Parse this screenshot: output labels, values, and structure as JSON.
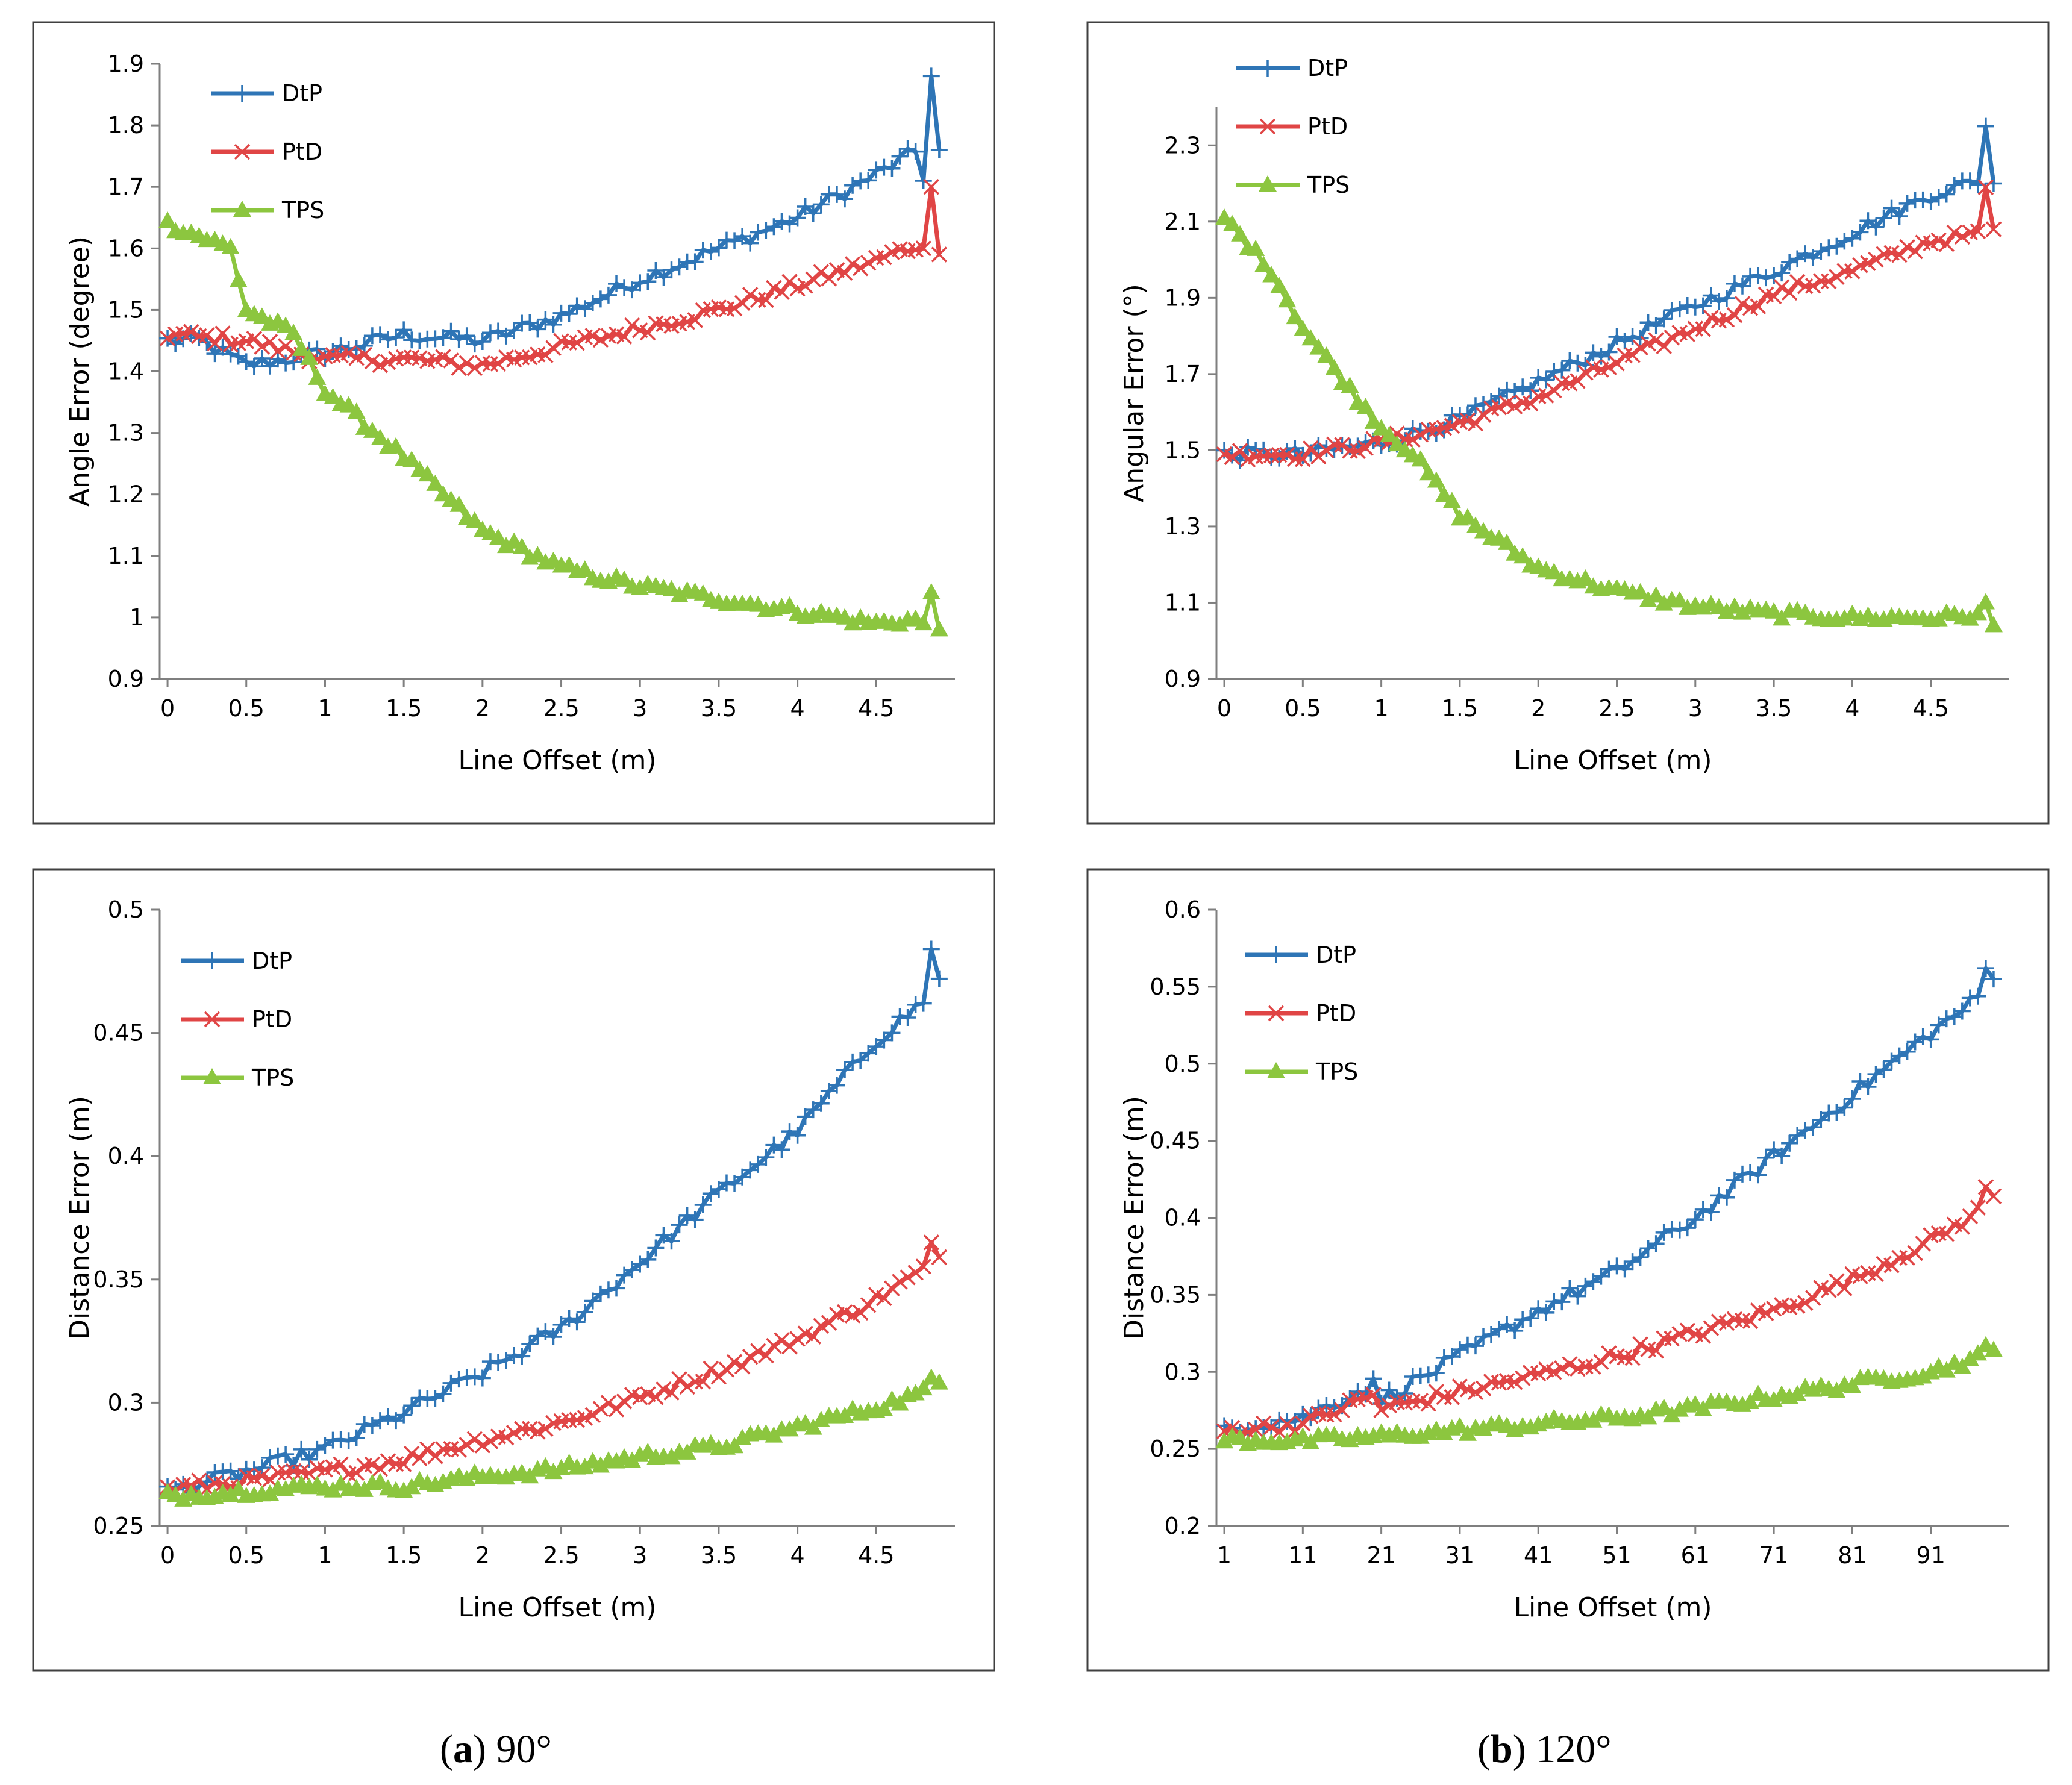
{
  "colors": {
    "dtp": "#2e75b6",
    "ptd": "#e04545",
    "tps": "#8cc63f",
    "axis": "#7f7f7f",
    "frame": "#404040"
  },
  "captions": {
    "a_letter": "a",
    "a_rest": " 90°",
    "b_letter": "b",
    "b_rest": " 120°"
  },
  "chart_data": [
    {
      "id": "a-angle",
      "type": "line",
      "title": "",
      "xlabel": "Line Offset (m)",
      "ylabel": "Angle Error (degree)",
      "xlim": [
        -0.05,
        5.0
      ],
      "ylim": [
        0.9,
        1.9
      ],
      "xticks": [
        0,
        0.5,
        1,
        1.5,
        2,
        2.5,
        3,
        3.5,
        4,
        4.5
      ],
      "xtick_labels": [
        "0",
        "0.5",
        "1",
        "1.5",
        "2",
        "2.5",
        "3",
        "3.5",
        "4",
        "4.5"
      ],
      "yticks": [
        0.9,
        1.0,
        1.1,
        1.2,
        1.3,
        1.4,
        1.5,
        1.6,
        1.7,
        1.8,
        1.9
      ],
      "ytick_labels": [
        "0.9",
        "1",
        "1.1",
        "1.2",
        "1.3",
        "1.4",
        "1.5",
        "1.6",
        "1.7",
        "1.8",
        "1.9"
      ],
      "legend": [
        "DtP",
        "PtD",
        "TPS"
      ],
      "legend_position": "top-left",
      "x_start": 0,
      "x_step": 0.05,
      "anchors": {
        "DtP": [
          [
            0,
            1.45
          ],
          [
            0.2,
            1.45
          ],
          [
            0.5,
            1.41
          ],
          [
            1.0,
            1.43
          ],
          [
            1.5,
            1.46
          ],
          [
            2.0,
            1.45
          ],
          [
            2.5,
            1.49
          ],
          [
            3.0,
            1.55
          ],
          [
            3.5,
            1.6
          ],
          [
            4.0,
            1.65
          ],
          [
            4.5,
            1.72
          ],
          [
            4.9,
            1.78
          ]
        ],
        "PtD": [
          [
            0,
            1.46
          ],
          [
            0.5,
            1.45
          ],
          [
            1.0,
            1.42
          ],
          [
            1.5,
            1.42
          ],
          [
            2.0,
            1.41
          ],
          [
            2.5,
            1.44
          ],
          [
            3.0,
            1.47
          ],
          [
            3.5,
            1.5
          ],
          [
            4.0,
            1.54
          ],
          [
            4.5,
            1.58
          ],
          [
            4.9,
            1.62
          ]
        ],
        "TPS": [
          [
            0,
            1.64
          ],
          [
            0.4,
            1.6
          ],
          [
            0.5,
            1.5
          ],
          [
            0.8,
            1.46
          ],
          [
            1.0,
            1.37
          ],
          [
            1.5,
            1.26
          ],
          [
            2.0,
            1.14
          ],
          [
            2.5,
            1.08
          ],
          [
            3.0,
            1.05
          ],
          [
            3.5,
            1.03
          ],
          [
            4.0,
            1.01
          ],
          [
            4.5,
            0.99
          ],
          [
            4.9,
            1.0
          ]
        ]
      },
      "overrides": {
        "DtP": [
          [
            4.8,
            1.71
          ],
          [
            4.85,
            1.88
          ],
          [
            4.9,
            1.76
          ]
        ],
        "PtD": [
          [
            4.8,
            1.6
          ],
          [
            4.85,
            1.7
          ],
          [
            4.9,
            1.59
          ]
        ],
        "TPS": [
          [
            4.8,
            0.99
          ],
          [
            4.85,
            1.04
          ],
          [
            4.9,
            0.98
          ]
        ]
      }
    },
    {
      "id": "b-angle",
      "type": "line",
      "title": "",
      "xlabel": "Line Offset (m)",
      "ylabel": "Angular Error (°)",
      "xlim": [
        -0.05,
        5.0
      ],
      "ylim": [
        0.9,
        2.4
      ],
      "xticks": [
        0,
        0.5,
        1,
        1.5,
        2,
        2.5,
        3,
        3.5,
        4,
        4.5
      ],
      "xtick_labels": [
        "0",
        "0.5",
        "1",
        "1.5",
        "2",
        "2.5",
        "3",
        "3.5",
        "4",
        "4.5"
      ],
      "yticks": [
        0.9,
        1.1,
        1.3,
        1.5,
        1.7,
        1.9,
        2.1,
        2.3
      ],
      "ytick_labels": [
        "0.9",
        "1.1",
        "1.3",
        "1.5",
        "1.7",
        "1.9",
        "2.1",
        "2.3"
      ],
      "legend": [
        "DtP",
        "PtD",
        "TPS"
      ],
      "legend_position": "top-left",
      "x_start": 0,
      "x_step": 0.05,
      "anchors": {
        "DtP": [
          [
            0,
            1.49
          ],
          [
            0.5,
            1.49
          ],
          [
            1.0,
            1.52
          ],
          [
            1.5,
            1.58
          ],
          [
            2.0,
            1.68
          ],
          [
            2.5,
            1.78
          ],
          [
            3.0,
            1.88
          ],
          [
            3.5,
            1.97
          ],
          [
            4.0,
            2.07
          ],
          [
            4.5,
            2.17
          ],
          [
            4.9,
            2.22
          ]
        ],
        "PtD": [
          [
            0,
            1.49
          ],
          [
            0.5,
            1.49
          ],
          [
            1.0,
            1.52
          ],
          [
            1.5,
            1.57
          ],
          [
            2.0,
            1.64
          ],
          [
            2.5,
            1.73
          ],
          [
            3.0,
            1.82
          ],
          [
            3.5,
            1.91
          ],
          [
            4.0,
            1.97
          ],
          [
            4.5,
            2.05
          ],
          [
            4.9,
            2.07
          ]
        ],
        "TPS": [
          [
            0,
            2.11
          ],
          [
            0.3,
            1.97
          ],
          [
            0.5,
            1.82
          ],
          [
            0.8,
            1.66
          ],
          [
            1.0,
            1.56
          ],
          [
            1.2,
            1.49
          ],
          [
            1.5,
            1.33
          ],
          [
            2.0,
            1.19
          ],
          [
            2.5,
            1.13
          ],
          [
            3.0,
            1.09
          ],
          [
            3.5,
            1.07
          ],
          [
            4.0,
            1.06
          ],
          [
            4.5,
            1.06
          ],
          [
            4.9,
            1.07
          ]
        ]
      },
      "overrides": {
        "DtP": [
          [
            4.85,
            2.35
          ],
          [
            4.9,
            2.2
          ]
        ],
        "PtD": [
          [
            4.85,
            2.19
          ],
          [
            4.9,
            2.08
          ]
        ],
        "TPS": [
          [
            4.85,
            1.1
          ],
          [
            4.9,
            1.04
          ]
        ]
      }
    },
    {
      "id": "a-distance",
      "type": "line",
      "title": "",
      "xlabel": "Line Offset (m)",
      "ylabel": "Distance Error (m)",
      "xlim": [
        -0.05,
        5.0
      ],
      "ylim": [
        0.25,
        0.5
      ],
      "xticks": [
        0,
        0.5,
        1,
        1.5,
        2,
        2.5,
        3,
        3.5,
        4,
        4.5
      ],
      "xtick_labels": [
        "0",
        "0.5",
        "1",
        "1.5",
        "2",
        "2.5",
        "3",
        "3.5",
        "4",
        "4.5"
      ],
      "yticks": [
        0.25,
        0.3,
        0.35,
        0.4,
        0.45,
        0.5
      ],
      "ytick_labels": [
        "0.25",
        "0.3",
        "0.35",
        "0.4",
        "0.45",
        "0.5"
      ],
      "legend": [
        "DtP",
        "PtD",
        "TPS"
      ],
      "legend_position": "top-left",
      "x_start": 0,
      "x_step": 0.05,
      "anchors": {
        "DtP": [
          [
            0,
            0.264
          ],
          [
            0.5,
            0.272
          ],
          [
            1.0,
            0.281
          ],
          [
            1.5,
            0.296
          ],
          [
            2.0,
            0.312
          ],
          [
            2.5,
            0.33
          ],
          [
            3.0,
            0.357
          ],
          [
            3.5,
            0.385
          ],
          [
            4.0,
            0.41
          ],
          [
            4.5,
            0.447
          ],
          [
            4.9,
            0.468
          ]
        ],
        "PtD": [
          [
            0,
            0.265
          ],
          [
            0.5,
            0.268
          ],
          [
            1.0,
            0.272
          ],
          [
            1.5,
            0.277
          ],
          [
            2.0,
            0.285
          ],
          [
            2.5,
            0.292
          ],
          [
            3.0,
            0.302
          ],
          [
            3.5,
            0.313
          ],
          [
            4.0,
            0.326
          ],
          [
            4.5,
            0.342
          ],
          [
            4.9,
            0.358
          ]
        ],
        "TPS": [
          [
            0,
            0.262
          ],
          [
            0.5,
            0.264
          ],
          [
            1.0,
            0.266
          ],
          [
            1.5,
            0.266
          ],
          [
            2.0,
            0.27
          ],
          [
            2.5,
            0.273
          ],
          [
            3.0,
            0.278
          ],
          [
            3.5,
            0.282
          ],
          [
            4.0,
            0.29
          ],
          [
            4.5,
            0.298
          ],
          [
            4.9,
            0.306
          ]
        ]
      },
      "overrides": {
        "DtP": [
          [
            4.85,
            0.484
          ],
          [
            4.9,
            0.472
          ]
        ],
        "PtD": [
          [
            4.85,
            0.365
          ],
          [
            4.9,
            0.359
          ]
        ],
        "TPS": [
          [
            4.85,
            0.31
          ],
          [
            4.9,
            0.308
          ]
        ]
      }
    },
    {
      "id": "b-distance",
      "type": "line",
      "title": "",
      "xlabel": "Line Offset (m)",
      "ylabel": "Distance Error (m)",
      "xlim": [
        0,
        101
      ],
      "ylim": [
        0.2,
        0.6
      ],
      "xticks": [
        1,
        11,
        21,
        31,
        41,
        51,
        61,
        71,
        81,
        91
      ],
      "xtick_labels": [
        "1",
        "11",
        "21",
        "31",
        "41",
        "51",
        "61",
        "71",
        "81",
        "91"
      ],
      "yticks": [
        0.2,
        0.25,
        0.3,
        0.35,
        0.4,
        0.45,
        0.5,
        0.55,
        0.6
      ],
      "ytick_labels": [
        "0.2",
        "0.25",
        "0.3",
        "0.35",
        "0.4",
        "0.45",
        "0.5",
        "0.55",
        "0.6"
      ],
      "legend": [
        "DtP",
        "PtD",
        "TPS"
      ],
      "legend_position": "top-left",
      "x_start": 1,
      "x_step": 1,
      "anchors": {
        "DtP": [
          [
            1,
            0.264
          ],
          [
            11,
            0.27
          ],
          [
            20,
            0.292
          ],
          [
            21,
            0.282
          ],
          [
            31,
            0.31
          ],
          [
            41,
            0.34
          ],
          [
            51,
            0.365
          ],
          [
            61,
            0.4
          ],
          [
            71,
            0.44
          ],
          [
            81,
            0.48
          ],
          [
            91,
            0.52
          ],
          [
            99,
            0.55
          ]
        ],
        "PtD": [
          [
            1,
            0.262
          ],
          [
            11,
            0.266
          ],
          [
            20,
            0.285
          ],
          [
            21,
            0.276
          ],
          [
            31,
            0.287
          ],
          [
            41,
            0.298
          ],
          [
            51,
            0.31
          ],
          [
            61,
            0.325
          ],
          [
            71,
            0.34
          ],
          [
            81,
            0.36
          ],
          [
            91,
            0.385
          ],
          [
            99,
            0.41
          ]
        ],
        "TPS": [
          [
            1,
            0.256
          ],
          [
            11,
            0.255
          ],
          [
            21,
            0.258
          ],
          [
            31,
            0.262
          ],
          [
            41,
            0.266
          ],
          [
            51,
            0.27
          ],
          [
            61,
            0.276
          ],
          [
            71,
            0.284
          ],
          [
            81,
            0.292
          ],
          [
            91,
            0.3
          ],
          [
            99,
            0.312
          ]
        ]
      },
      "overrides": {
        "DtP": [
          [
            98,
            0.562
          ],
          [
            99,
            0.555
          ]
        ],
        "PtD": [
          [
            98,
            0.42
          ],
          [
            99,
            0.414
          ]
        ],
        "TPS": [
          [
            98,
            0.317
          ],
          [
            99,
            0.314
          ]
        ]
      }
    }
  ]
}
